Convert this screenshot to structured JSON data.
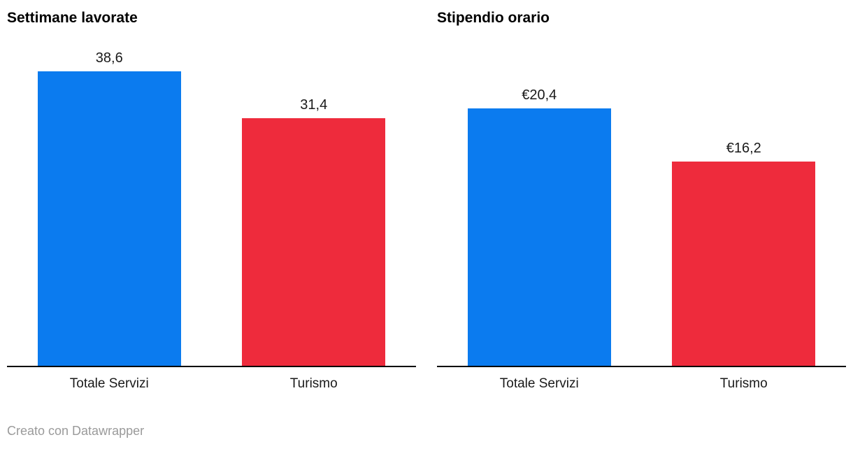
{
  "footer": {
    "credit": "Creato con Datawrapper"
  },
  "colors": {
    "bar_blue": "#0b7bef",
    "bar_red": "#ee2b3c",
    "axis": "#000000",
    "credit_text": "#9a9a9a"
  },
  "chart_data": [
    {
      "type": "bar",
      "title": "Settimane lavorate",
      "categories": [
        "Totale Servizi",
        "Turismo"
      ],
      "values": [
        38.6,
        31.4
      ],
      "value_labels": [
        "38,6",
        "31,4"
      ],
      "colors": [
        "#0b7bef",
        "#ee2b3c"
      ],
      "ylim": [
        0,
        40
      ],
      "xlabel": "",
      "ylabel": "",
      "grid": false,
      "legend": false
    },
    {
      "type": "bar",
      "title": "Stipendio orario",
      "categories": [
        "Totale Servizi",
        "Turismo"
      ],
      "values": [
        20.4,
        16.2
      ],
      "value_labels": [
        "€20,4",
        "€16,2"
      ],
      "colors": [
        "#0b7bef",
        "#ee2b3c"
      ],
      "ylim": [
        0,
        25
      ],
      "xlabel": "",
      "ylabel": "",
      "grid": false,
      "legend": false
    }
  ]
}
